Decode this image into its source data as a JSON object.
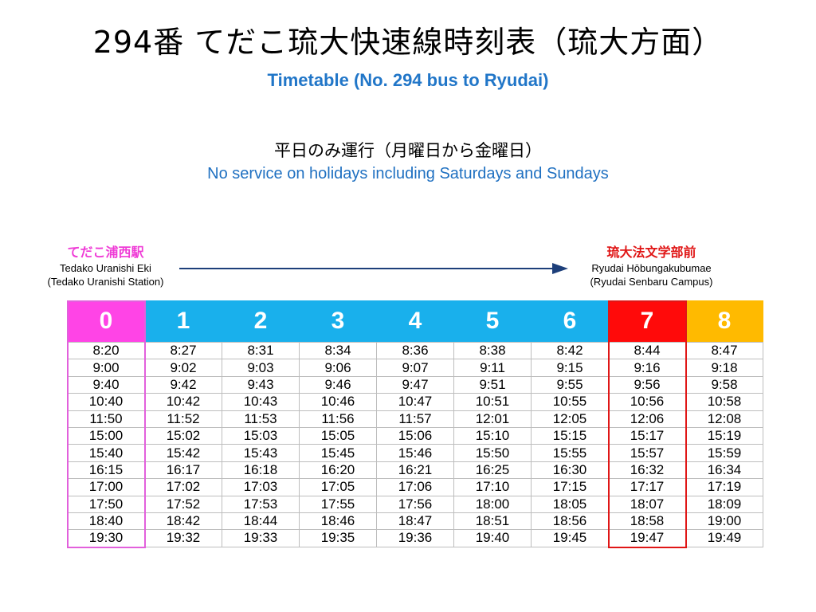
{
  "header": {
    "title_jp": "294番 てだこ琉大快速線時刻表（琉大方面）",
    "title_en": "Timetable (No. 294 bus to Ryudai)"
  },
  "notice": {
    "jp": "平日のみ運行（月曜日から金曜日）",
    "en": "No service on holidays including Saturdays and Sundays"
  },
  "route": {
    "origin": {
      "name_jp": "てだこ浦西駅",
      "name_romaji": "Tedako Uranishi Eki",
      "name_en": "(Tedako Uranishi Station)"
    },
    "destination": {
      "name_jp": "琉大法文学部前",
      "name_romaji": "Ryudai Hōbungakubumae",
      "name_en": "(Ryudai Senbaru Campus)"
    },
    "arrow_icon": "right-arrow-icon"
  },
  "timetable": {
    "columns": [
      {
        "label": "0",
        "color": "#ff44e6"
      },
      {
        "label": "1",
        "color": "#19b0ec"
      },
      {
        "label": "2",
        "color": "#19b0ec"
      },
      {
        "label": "3",
        "color": "#19b0ec"
      },
      {
        "label": "4",
        "color": "#19b0ec"
      },
      {
        "label": "5",
        "color": "#19b0ec"
      },
      {
        "label": "6",
        "color": "#19b0ec"
      },
      {
        "label": "7",
        "color": "#ff0a0a"
      },
      {
        "label": "8",
        "color": "#ffba00"
      }
    ],
    "highlight_origin_color": "#e260dc",
    "highlight_dest_color": "#e01616",
    "rows": [
      [
        "8:20",
        "8:27",
        "8:31",
        "8:34",
        "8:36",
        "8:38",
        "8:42",
        "8:44",
        "8:47"
      ],
      [
        "9:00",
        "9:02",
        "9:03",
        "9:06",
        "9:07",
        "9:11",
        "9:15",
        "9:16",
        "9:18"
      ],
      [
        "9:40",
        "9:42",
        "9:43",
        "9:46",
        "9:47",
        "9:51",
        "9:55",
        "9:56",
        "9:58"
      ],
      [
        "10:40",
        "10:42",
        "10:43",
        "10:46",
        "10:47",
        "10:51",
        "10:55",
        "10:56",
        "10:58"
      ],
      [
        "11:50",
        "11:52",
        "11:53",
        "11:56",
        "11:57",
        "12:01",
        "12:05",
        "12:06",
        "12:08"
      ],
      [
        "15:00",
        "15:02",
        "15:03",
        "15:05",
        "15:06",
        "15:10",
        "15:15",
        "15:17",
        "15:19"
      ],
      [
        "15:40",
        "15:42",
        "15:43",
        "15:45",
        "15:46",
        "15:50",
        "15:55",
        "15:57",
        "15:59"
      ],
      [
        "16:15",
        "16:17",
        "16:18",
        "16:20",
        "16:21",
        "16:25",
        "16:30",
        "16:32",
        "16:34"
      ],
      [
        "17:00",
        "17:02",
        "17:03",
        "17:05",
        "17:06",
        "17:10",
        "17:15",
        "17:17",
        "17:19"
      ],
      [
        "17:50",
        "17:52",
        "17:53",
        "17:55",
        "17:56",
        "18:00",
        "18:05",
        "18:07",
        "18:09"
      ],
      [
        "18:40",
        "18:42",
        "18:44",
        "18:46",
        "18:47",
        "18:51",
        "18:56",
        "18:58",
        "19:00"
      ],
      [
        "19:30",
        "19:32",
        "19:33",
        "19:35",
        "19:36",
        "19:40",
        "19:45",
        "19:47",
        "19:49"
      ]
    ]
  }
}
